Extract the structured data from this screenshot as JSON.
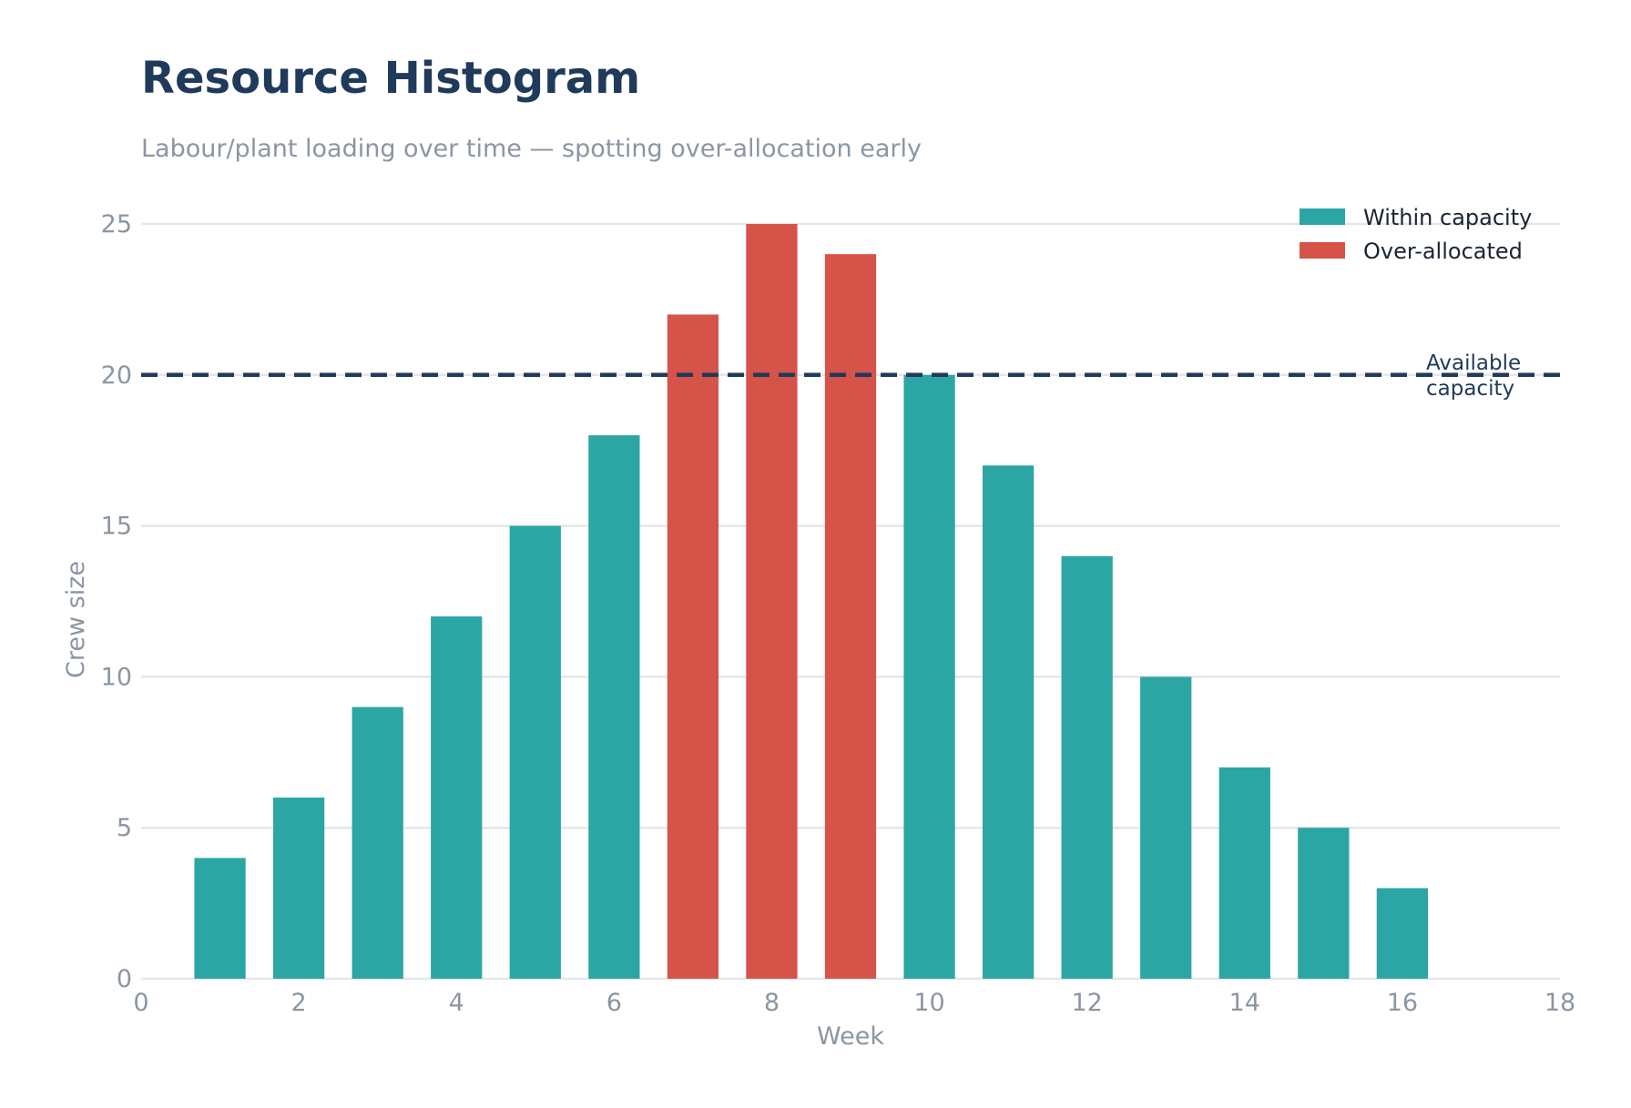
{
  "title": "Resource Histogram",
  "subtitle": "Labour/plant loading over time — spotting over-allocation early",
  "chart_data": {
    "type": "bar",
    "title": "Resource Histogram",
    "subtitle": "Labour/plant loading over time — spotting over-allocation early",
    "xlabel": "Week",
    "ylabel": "Crew size",
    "xlim": [
      0,
      18
    ],
    "ylim": [
      0,
      25
    ],
    "xticks": [
      0,
      2,
      4,
      6,
      8,
      10,
      12,
      14,
      16,
      18
    ],
    "yticks": [
      0,
      5,
      10,
      15,
      20,
      25
    ],
    "grid": "horizontal",
    "legend_position": "top-right",
    "capacity": 20,
    "capacity_label": "Available\ncapacity",
    "series": [
      {
        "name": "Within capacity",
        "color": "#2ca6a4",
        "x": [
          1,
          2,
          3,
          4,
          5,
          6,
          10,
          11,
          12,
          13,
          14,
          15,
          16
        ],
        "values": [
          4,
          6,
          9,
          12,
          15,
          18,
          20,
          17,
          14,
          10,
          7,
          5,
          3
        ]
      },
      {
        "name": "Over-allocated",
        "color": "#d6534a",
        "x": [
          7,
          8,
          9
        ],
        "values": [
          22,
          25,
          24
        ]
      }
    ]
  }
}
